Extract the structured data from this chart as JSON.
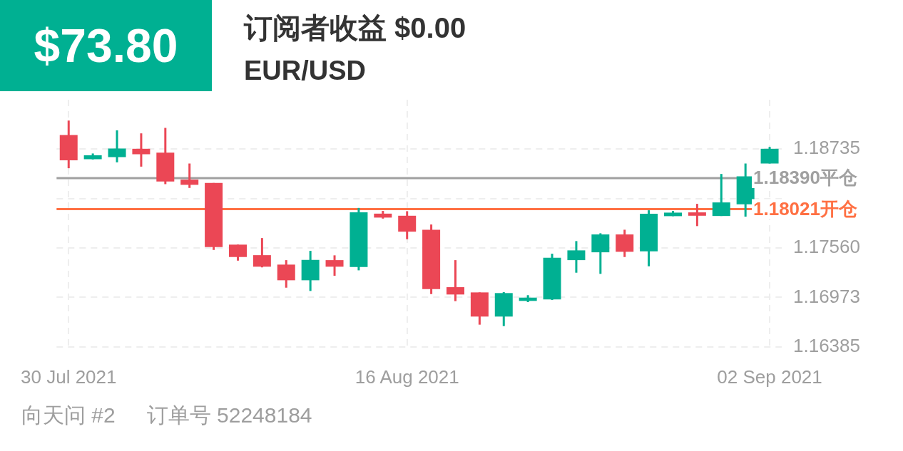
{
  "chart_data": {
    "type": "candlestick",
    "title": "订阅者收益 $0.00",
    "subtitle": "EUR/USD",
    "annotations": [
      "$73.80",
      "向天问 #2",
      "订单号 52248184"
    ],
    "categories": [
      "30 Jul 2021",
      null,
      null,
      null,
      null,
      null,
      null,
      null,
      null,
      null,
      null,
      null,
      null,
      null,
      "16 Aug 2021",
      null,
      null,
      null,
      null,
      null,
      null,
      null,
      null,
      null,
      null,
      null,
      null,
      null,
      null,
      "02 Sep 2021"
    ],
    "ohlc": [
      [
        1.18902,
        1.19073,
        1.18507,
        1.186
      ],
      [
        1.18614,
        1.18682,
        1.18612,
        1.18661
      ],
      [
        1.18639,
        1.18957,
        1.18577,
        1.18741
      ],
      [
        1.18738,
        1.18921,
        1.18526,
        1.18673
      ],
      [
        1.18693,
        1.18986,
        1.18318,
        1.18349
      ],
      [
        1.18372,
        1.18563,
        1.18273,
        1.1831
      ],
      [
        1.18332,
        1.18332,
        1.17537,
        1.17571
      ],
      [
        1.176,
        1.176,
        1.1741,
        1.17453
      ],
      [
        1.17475,
        1.17678,
        1.1733,
        1.17338
      ],
      [
        1.17363,
        1.17416,
        1.17089,
        1.17177
      ],
      [
        1.17177,
        1.17526,
        1.1705,
        1.17419
      ],
      [
        1.17416,
        1.17473,
        1.1723,
        1.17338
      ],
      [
        1.17334,
        1.18036,
        1.17295,
        1.17983
      ],
      [
        1.17968,
        1.18,
        1.17909,
        1.17921
      ],
      [
        1.17943,
        1.17997,
        1.17664,
        1.17754
      ],
      [
        1.17777,
        1.17839,
        1.17013,
        1.17072
      ],
      [
        1.17095,
        1.17416,
        1.16929,
        1.17008
      ],
      [
        1.17033,
        1.17033,
        1.1665,
        1.16746
      ],
      [
        1.16746,
        1.17036,
        1.16633,
        1.17025
      ],
      [
        1.16932,
        1.17,
        1.16918,
        1.16971
      ],
      [
        1.16949,
        1.17492,
        1.16943,
        1.17444
      ],
      [
        1.17416,
        1.17642,
        1.17267,
        1.17532
      ],
      [
        1.17509,
        1.17735,
        1.17253,
        1.17721
      ],
      [
        1.17721,
        1.17777,
        1.17453,
        1.17515
      ],
      [
        1.1752,
        1.18008,
        1.17343,
        1.17966
      ],
      [
        1.17938,
        1.18,
        1.17938,
        1.1798
      ],
      [
        1.17983,
        1.18084,
        1.1782,
        1.17943
      ],
      [
        1.1794,
        1.18439,
        1.1794,
        1.18101
      ],
      [
        1.18078,
        1.18563,
        1.17932,
        1.18411
      ],
      [
        1.18563,
        1.1876,
        1.18563,
        1.18738
      ]
    ],
    "colors": [
      "#eb4755",
      "#00b092",
      "#00b092",
      "#eb4755",
      "#eb4755",
      "#eb4755",
      "#eb4755",
      "#eb4755",
      "#eb4755",
      "#eb4755",
      "#00b092",
      "#eb4755",
      "#00b092",
      "#eb4755",
      "#eb4755",
      "#eb4755",
      "#eb4755",
      "#eb4755",
      "#00b092",
      "#00b092",
      "#00b092",
      "#00b092",
      "#00b092",
      "#eb4755",
      "#00b092",
      "#00b092",
      "#eb4755",
      "#00b092",
      "#00b092",
      "#00b092"
    ],
    "ylim": [
      1.16385,
      1.1932
    ],
    "yticks": [
      1.16385,
      1.16973,
      {
        "value": 1.1756,
        "label": "1.17560"
      },
      {
        "value": 1.18148,
        "label": null
      },
      1.18735
    ],
    "ref_lines": [
      {
        "axis": "y",
        "value": 1.1839,
        "label": "1.18390平仓",
        "color": "#a0a0a0"
      },
      {
        "axis": "y",
        "value": 1.18021,
        "label": "1.18021开仓",
        "color": "#ff7043"
      }
    ],
    "grid": true,
    "legend": false
  }
}
